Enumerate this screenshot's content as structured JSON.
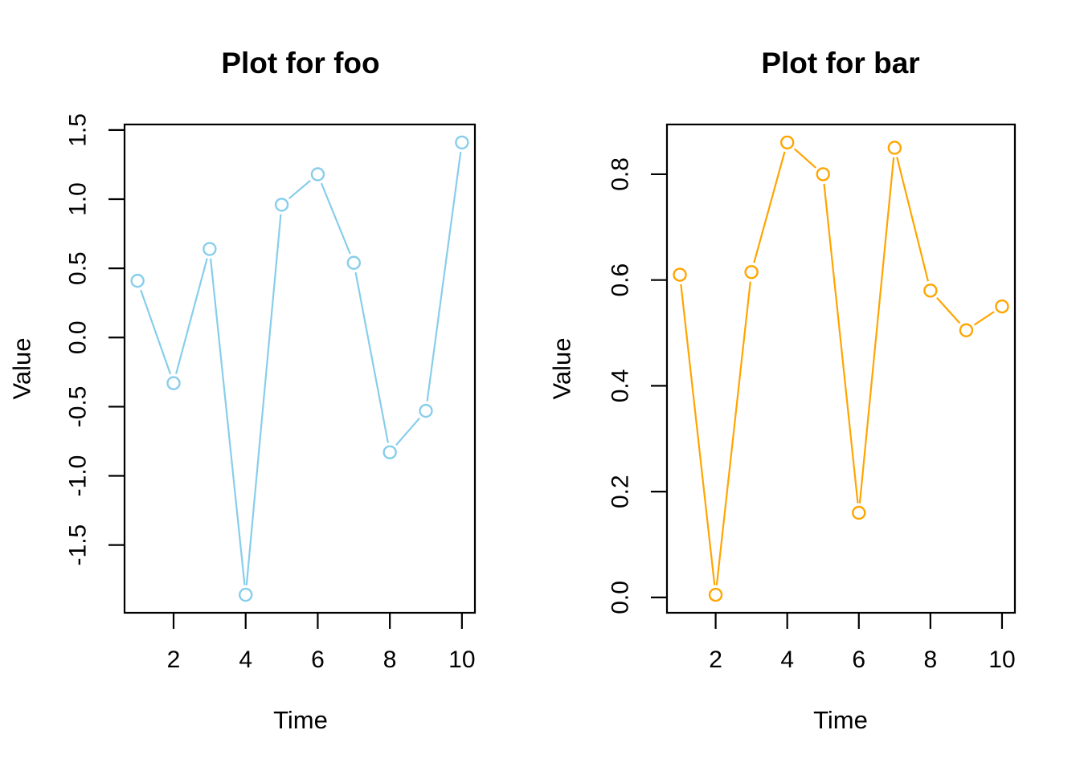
{
  "figure": {
    "background": "#ffffff",
    "text_color": "#000000"
  },
  "chart_data": [
    {
      "type": "line",
      "title": "Plot for foo",
      "xlabel": "Time",
      "ylabel": "Value",
      "series_color": "#87CEEB",
      "marker": "open-circle",
      "line_style": "points-and-segments",
      "grid": false,
      "legend": null,
      "x": [
        1,
        2,
        3,
        4,
        5,
        6,
        7,
        8,
        9,
        10
      ],
      "y": [
        0.41,
        -0.33,
        0.64,
        -1.86,
        0.96,
        1.18,
        0.54,
        -0.83,
        -0.53,
        1.41
      ],
      "xlim": [
        0.64,
        10.36
      ],
      "ylim": [
        -1.99,
        1.54
      ],
      "xticks": [
        2,
        4,
        6,
        8,
        10
      ],
      "xtick_labels": [
        "2",
        "4",
        "6",
        "8",
        "10"
      ],
      "yticks": [
        -1.5,
        -1.0,
        -0.5,
        0.0,
        0.5,
        1.0,
        1.5
      ],
      "ytick_labels": [
        "-1.5",
        "-1.0",
        "-0.5",
        "0.0",
        "0.5",
        "1.0",
        "1.5"
      ]
    },
    {
      "type": "line",
      "title": "Plot for bar",
      "xlabel": "Time",
      "ylabel": "Value",
      "series_color": "#FFA500",
      "marker": "open-circle",
      "line_style": "points-and-segments",
      "grid": false,
      "legend": null,
      "x": [
        1,
        2,
        3,
        4,
        5,
        6,
        7,
        8,
        9,
        10
      ],
      "y": [
        0.61,
        0.005,
        0.615,
        0.86,
        0.8,
        0.16,
        0.85,
        0.58,
        0.505,
        0.55
      ],
      "xlim": [
        0.64,
        10.36
      ],
      "ylim": [
        -0.029,
        0.894
      ],
      "xticks": [
        2,
        4,
        6,
        8,
        10
      ],
      "xtick_labels": [
        "2",
        "4",
        "6",
        "8",
        "10"
      ],
      "yticks": [
        0.0,
        0.2,
        0.4,
        0.6,
        0.8
      ],
      "ytick_labels": [
        "0.0",
        "0.2",
        "0.4",
        "0.6",
        "0.8"
      ]
    }
  ]
}
